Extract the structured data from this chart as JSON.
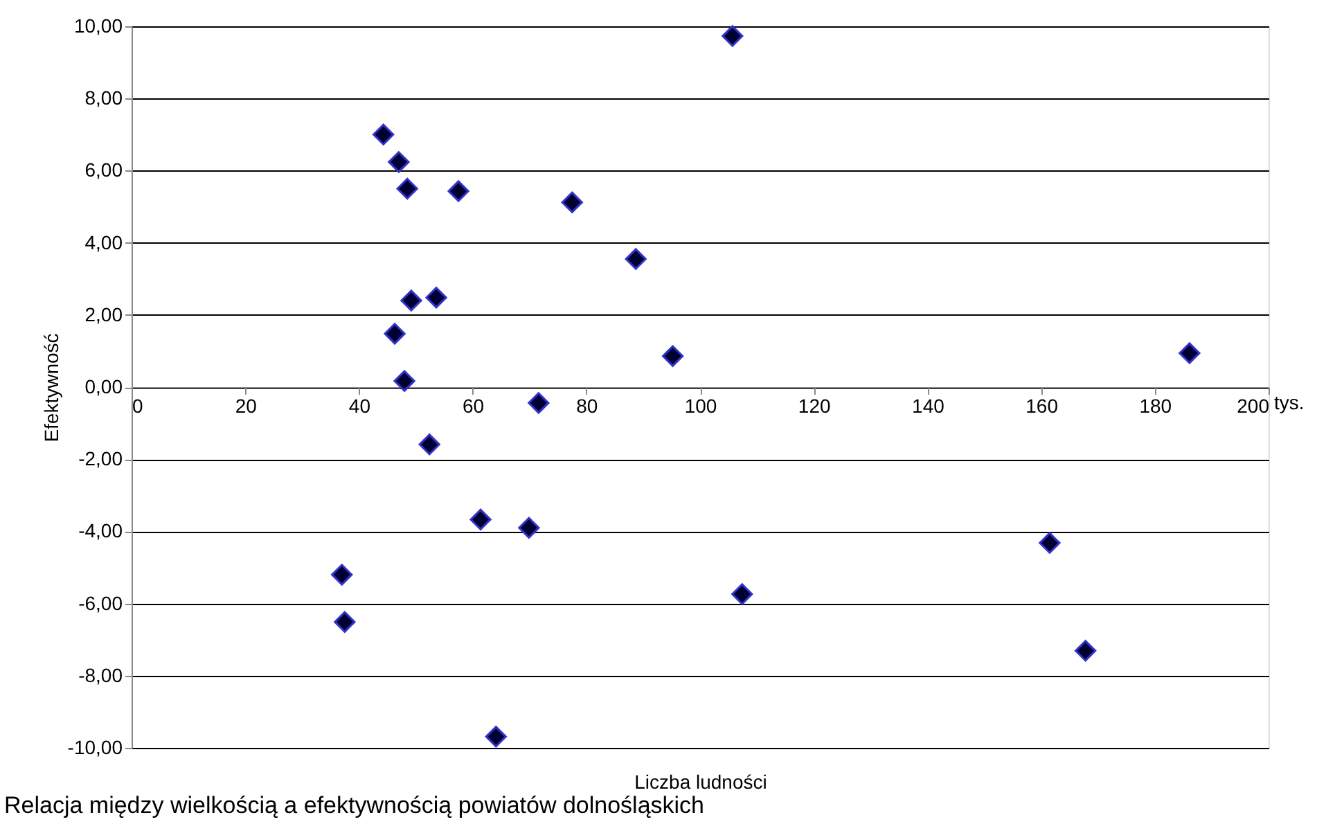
{
  "chart_data": {
    "type": "scatter",
    "xlabel": "Liczba ludności",
    "ylabel": "Efektywność",
    "x": [
      105.7,
      44.3,
      47.0,
      48.5,
      57.5,
      77.5,
      88.7,
      49.2,
      53.6,
      46.3,
      95.2,
      186.1,
      48.0,
      71.6,
      52.4,
      61.4,
      69.9,
      37.0,
      107.4,
      161.5,
      37.5,
      167.8,
      64.1
    ],
    "series": [
      {
        "color": "#000033",
        "values": [
          9.73,
          7.0,
          6.24,
          5.5,
          5.43,
          5.12,
          3.55,
          2.4,
          2.48,
          1.48,
          0.86,
          0.94,
          0.17,
          -0.44,
          -1.59,
          -3.67,
          -3.9,
          -5.2,
          -5.74,
          -4.32,
          -6.51,
          -7.31,
          -9.69
        ]
      }
    ],
    "xlim": [
      0,
      200
    ],
    "xticks": [
      0,
      20,
      40,
      60,
      80,
      100,
      120,
      140,
      160,
      180,
      200
    ],
    "ylim": [
      -10,
      10
    ],
    "yticks": [
      {
        "value": -10,
        "label": "-10,00"
      },
      {
        "value": -8,
        "label": "-8,00"
      },
      {
        "value": -6,
        "label": "-6,00"
      },
      {
        "value": -4,
        "label": "-4,00"
      },
      {
        "value": -2,
        "label": "-2,00"
      },
      {
        "value": 0,
        "label": "0,00"
      },
      {
        "value": 2,
        "label": "2,00"
      },
      {
        "value": 4,
        "label": "4,00"
      },
      {
        "value": 6,
        "label": "6,00"
      },
      {
        "value": 8,
        "label": "8,00"
      },
      {
        "value": 10,
        "label": "10,00"
      }
    ],
    "grid": "y",
    "marker": "diamond",
    "annotations": [
      "tys.",
      "Relacja między wielkością a efektywnością powiatów dolnośląskich"
    ]
  }
}
